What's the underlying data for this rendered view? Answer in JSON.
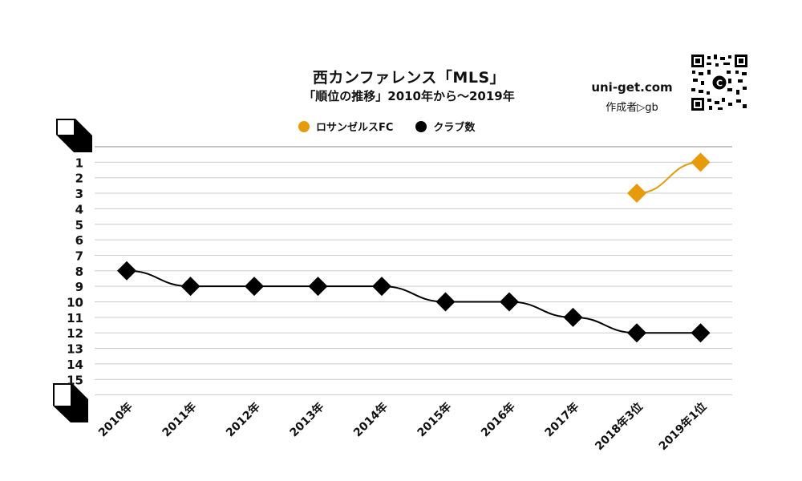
{
  "header": {
    "title": "西カンファレンス「MLS」",
    "subtitle": "「順位の推移」2010年から～2019年"
  },
  "brand": {
    "site": "uni-get.com",
    "author": "作成者▷gb",
    "qr_badge": "C"
  },
  "colors": {
    "team": "#E69B0B",
    "clubs": "#000000",
    "grid": "#cccccc"
  },
  "chart_data": {
    "type": "line",
    "title": "西カンファレンス「MLS」",
    "subtitle": "「順位の推移」2010年から～2019年",
    "categories": [
      "2010年",
      "2011年",
      "2012年",
      "2013年",
      "2014年",
      "2015年",
      "2016年",
      "2017年",
      "2018年3位",
      "2019年1位"
    ],
    "y_ticks": [
      "1",
      "2",
      "3",
      "4",
      "5",
      "6",
      "7",
      "8",
      "9",
      "10",
      "11",
      "12",
      "13",
      "14",
      "15"
    ],
    "ylim": [
      0,
      16
    ],
    "y_inverted": true,
    "grid": true,
    "legend_position": "top-center",
    "series": [
      {
        "name": "ロサンゼルスFC",
        "color": "#E69B0B",
        "values": [
          null,
          null,
          null,
          null,
          null,
          null,
          null,
          null,
          3,
          1
        ]
      },
      {
        "name": "クラブ数",
        "color": "#000000",
        "values": [
          8,
          9,
          9,
          9,
          9,
          10,
          10,
          11,
          12,
          12
        ]
      }
    ]
  }
}
